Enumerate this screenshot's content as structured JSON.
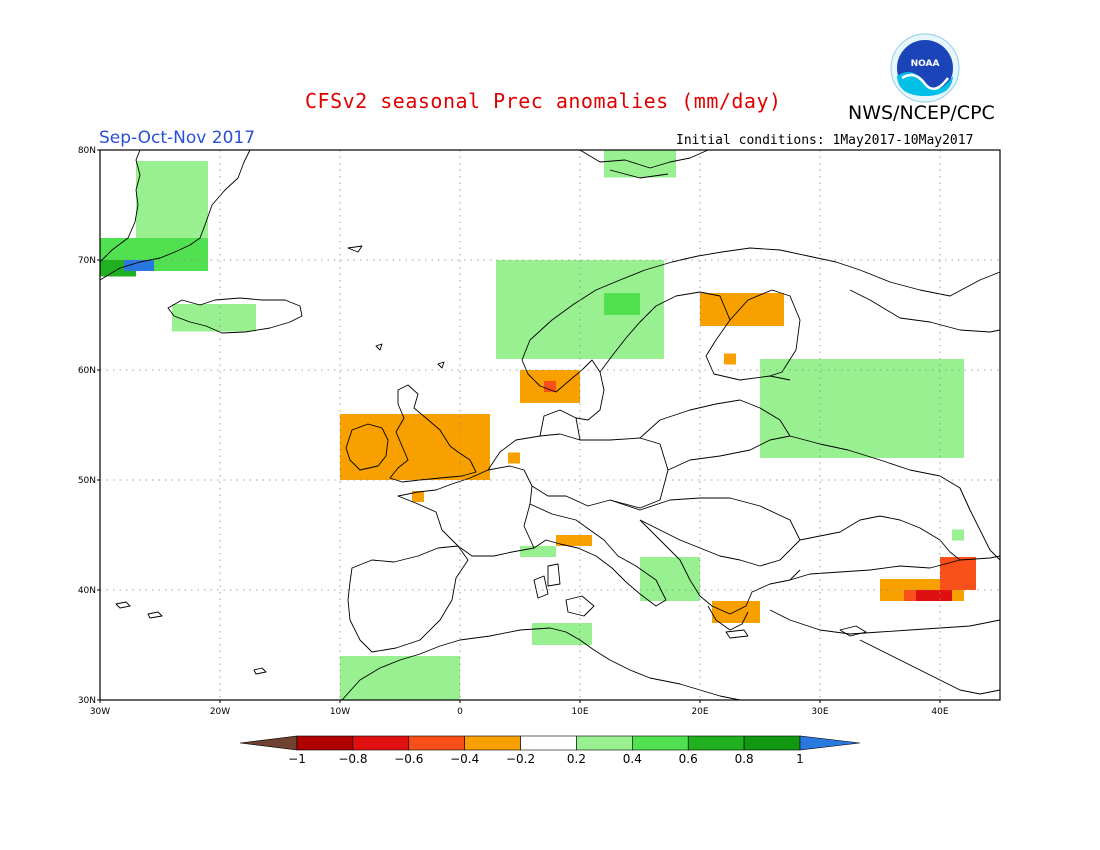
{
  "header": {
    "title": "CFSv2 seasonal Prec anomalies (mm/day)",
    "agency": "NWS/NCEP/CPC",
    "logo_text": "NOAA",
    "season": "Sep-Oct-Nov 2017",
    "initial_conditions": "Initial conditions: 1May2017-10May2017"
  },
  "colors": {
    "title": "#e00000",
    "season": "#2a4fd8",
    "wet_light": "#98f090",
    "wet_medium": "#50e050",
    "wet_strong": "#20b020",
    "wet_darker": "#109810",
    "wet_extreme": "#2878e0",
    "dry_light": "#f8a000",
    "dry_medium": "#f85018",
    "dry_strong": "#e01010",
    "dry_darker": "#b00000",
    "dry_extreme": "#704030"
  },
  "map": {
    "lon_range": [
      -30,
      45
    ],
    "lat_range": [
      30,
      80
    ],
    "lat_ticks": [
      "80N",
      "70N",
      "60N",
      "50N",
      "40N",
      "30N"
    ],
    "lon_ticks": [
      "30W",
      "20W",
      "10W",
      "0",
      "10E",
      "20E",
      "30E",
      "40E"
    ],
    "grid": true
  },
  "colorbar": {
    "labels": [
      "-1",
      "-0.8",
      "-0.6",
      "-0.4",
      "-0.2",
      "0.2",
      "0.4",
      "0.6",
      "0.8",
      "1"
    ],
    "colors": [
      "#704030",
      "#b00000",
      "#e01010",
      "#f85018",
      "#f8a000",
      "#ffffff",
      "#98f090",
      "#50e050",
      "#20b020",
      "#109810",
      "#2878e0"
    ]
  },
  "anomaly_regions": [
    {
      "name": "Greenland east coast",
      "category": "wet_light",
      "lon": [
        -27,
        -21
      ],
      "lat": [
        71,
        79
      ]
    },
    {
      "name": "Greenland southeast",
      "category": "wet_medium",
      "lon": [
        -30,
        -21
      ],
      "lat": [
        69,
        72
      ]
    },
    {
      "name": "Greenland strong",
      "category": "wet_strong",
      "lon": [
        -30,
        -27
      ],
      "lat": [
        68.5,
        70
      ]
    },
    {
      "name": "Greenland extreme",
      "category": "wet_extreme",
      "lon": [
        -28,
        -25.5
      ],
      "lat": [
        69,
        70
      ]
    },
    {
      "name": "Iceland",
      "category": "wet_light",
      "lon": [
        -24,
        -17
      ],
      "lat": [
        63.5,
        66
      ]
    },
    {
      "name": "Svalbard",
      "category": "wet_light",
      "lon": [
        12,
        18
      ],
      "lat": [
        77.5,
        80
      ]
    },
    {
      "name": "Norway coast",
      "category": "wet_light",
      "lon": [
        3,
        17
      ],
      "lat": [
        61,
        70
      ]
    },
    {
      "name": "Norway coast medium",
      "category": "wet_medium",
      "lon": [
        12,
        15
      ],
      "lat": [
        65,
        67
      ]
    },
    {
      "name": "Western Russia",
      "category": "wet_light",
      "lon": [
        25,
        42
      ],
      "lat": [
        52,
        61
      ]
    },
    {
      "name": "Caucasus north",
      "category": "wet_light",
      "lon": [
        41,
        42
      ],
      "lat": [
        44.5,
        45.5
      ]
    },
    {
      "name": "Northern Italy",
      "category": "wet_light",
      "lon": [
        5,
        8
      ],
      "lat": [
        43,
        44
      ]
    },
    {
      "name": "Adriatic",
      "category": "wet_light",
      "lon": [
        15,
        20
      ],
      "lat": [
        39,
        43
      ]
    },
    {
      "name": "North Africa",
      "category": "wet_light",
      "lon": [
        6,
        11
      ],
      "lat": [
        35,
        37
      ]
    },
    {
      "name": "Iberia south",
      "category": "wet_light",
      "lon": [
        -10,
        0
      ],
      "lat": [
        30,
        34
      ]
    },
    {
      "name": "British Isles",
      "category": "dry_light",
      "lon": [
        -10,
        2.5
      ],
      "lat": [
        50,
        56
      ]
    },
    {
      "name": "Brittany",
      "category": "dry_light",
      "lon": [
        -4,
        -3
      ],
      "lat": [
        48,
        49
      ]
    },
    {
      "name": "Benelux",
      "category": "dry_light",
      "lon": [
        4,
        5
      ],
      "lat": [
        51.5,
        52.5
      ]
    },
    {
      "name": "Southern Norway",
      "category": "dry_light",
      "lon": [
        5,
        10
      ],
      "lat": [
        57,
        60
      ]
    },
    {
      "name": "Southern Norway medium",
      "category": "dry_medium",
      "lon": [
        7,
        8
      ],
      "lat": [
        58,
        59
      ]
    },
    {
      "name": "Northern Finland",
      "category": "dry_light",
      "lon": [
        20,
        27
      ],
      "lat": [
        64,
        67
      ]
    },
    {
      "name": "Finland",
      "category": "dry_light",
      "lon": [
        22,
        23
      ],
      "lat": [
        60.5,
        61.5
      ]
    },
    {
      "name": "Alps",
      "category": "dry_light",
      "lon": [
        8,
        11
      ],
      "lat": [
        44,
        45
      ]
    },
    {
      "name": "Greece",
      "category": "dry_light",
      "lon": [
        21,
        25
      ],
      "lat": [
        37,
        39
      ]
    },
    {
      "name": "Turkey east",
      "category": "dry_light",
      "lon": [
        35,
        42
      ],
      "lat": [
        39,
        41
      ]
    },
    {
      "name": "Turkey east medium",
      "category": "dry_medium",
      "lon": [
        37,
        41
      ],
      "lat": [
        39,
        40
      ]
    },
    {
      "name": "Caucasus",
      "category": "dry_medium",
      "lon": [
        40,
        43
      ],
      "lat": [
        40,
        43
      ]
    },
    {
      "name": "Caucasus strong",
      "category": "dry_strong",
      "lon": [
        38,
        41
      ],
      "lat": [
        39,
        40
      ]
    }
  ]
}
